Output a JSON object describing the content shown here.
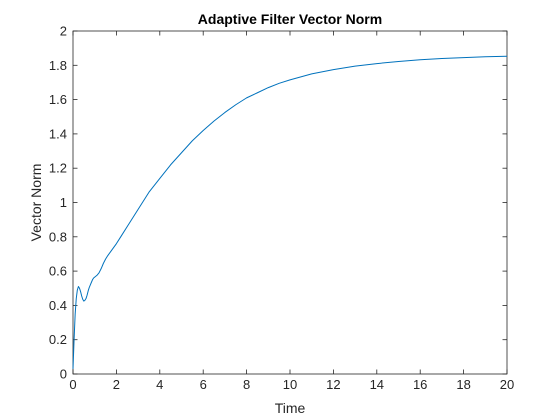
{
  "chart_data": {
    "type": "line",
    "title": "Adaptive Filter Vector Norm",
    "xlabel": "Time",
    "ylabel": "Vector Norm",
    "xlim": [
      0,
      20
    ],
    "ylim": [
      0,
      2
    ],
    "xticks": [
      0,
      2,
      4,
      6,
      8,
      10,
      12,
      14,
      16,
      18,
      20
    ],
    "xtick_labels": [
      "0",
      "2",
      "4",
      "6",
      "8",
      "10",
      "12",
      "14",
      "16",
      "18",
      "20"
    ],
    "yticks": [
      0,
      0.2,
      0.4,
      0.6,
      0.8,
      1,
      1.2,
      1.4,
      1.6,
      1.8,
      2
    ],
    "ytick_labels": [
      "0",
      "0.2",
      "0.4",
      "0.6",
      "0.8",
      "1",
      "1.2",
      "1.4",
      "1.6",
      "1.8",
      "2"
    ],
    "grid": false,
    "box": true,
    "series": [
      {
        "color": "#0072bd",
        "x": [
          0,
          0.05,
          0.1,
          0.15,
          0.2,
          0.25,
          0.3,
          0.35,
          0.4,
          0.45,
          0.5,
          0.55,
          0.6,
          0.65,
          0.7,
          0.75,
          0.8,
          0.85,
          0.9,
          0.95,
          1.0,
          1.1,
          1.2,
          1.3,
          1.4,
          1.5,
          1.6,
          1.8,
          2.0,
          2.2,
          2.5,
          3.0,
          3.5,
          4.0,
          4.5,
          5.0,
          5.5,
          6.0,
          6.5,
          7.0,
          7.5,
          8.0,
          8.5,
          9.0,
          9.5,
          10,
          11,
          12,
          13,
          14,
          15,
          16,
          17,
          18,
          19,
          20
        ],
        "y": [
          0.03,
          0.2,
          0.35,
          0.44,
          0.49,
          0.51,
          0.5,
          0.48,
          0.455,
          0.435,
          0.425,
          0.43,
          0.44,
          0.46,
          0.485,
          0.505,
          0.52,
          0.535,
          0.55,
          0.56,
          0.565,
          0.575,
          0.59,
          0.615,
          0.645,
          0.67,
          0.69,
          0.725,
          0.76,
          0.8,
          0.86,
          0.96,
          1.06,
          1.14,
          1.22,
          1.29,
          1.36,
          1.42,
          1.475,
          1.525,
          1.57,
          1.61,
          1.64,
          1.67,
          1.695,
          1.715,
          1.75,
          1.775,
          1.795,
          1.81,
          1.822,
          1.832,
          1.84,
          1.845,
          1.85,
          1.853
        ]
      }
    ]
  }
}
